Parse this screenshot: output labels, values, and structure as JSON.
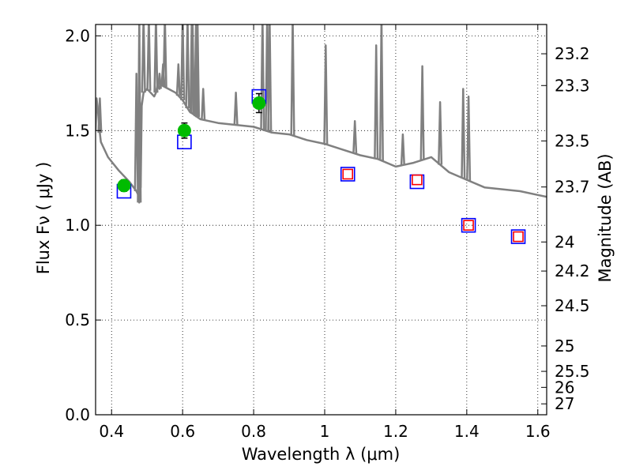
{
  "chart_data": {
    "type": "scatter",
    "xlabel": "Wavelength  λ (μm)",
    "ylabel": "Flux  Fν  ( μJy )",
    "y2label": "Magnitude (AB)",
    "xlim": [
      0.355,
      1.625
    ],
    "ylim": [
      0.0,
      2.06
    ],
    "grid": true,
    "x_ticks": [
      {
        "value": 0.4,
        "label": "0.4"
      },
      {
        "value": 0.6,
        "label": "0.6"
      },
      {
        "value": 0.8,
        "label": "0.8"
      },
      {
        "value": 1.0,
        "label": "1"
      },
      {
        "value": 1.2,
        "label": "1.2"
      },
      {
        "value": 1.4,
        "label": "1.4"
      },
      {
        "value": 1.6,
        "label": "1.6"
      }
    ],
    "y_ticks": [
      {
        "value": 0.0,
        "label": "0.0"
      },
      {
        "value": 0.5,
        "label": "0.5"
      },
      {
        "value": 1.0,
        "label": "1.0"
      },
      {
        "value": 1.5,
        "label": "1.5"
      },
      {
        "value": 2.0,
        "label": "2.0"
      }
    ],
    "magnitude_ticks": [
      "23.2",
      "23.3",
      "23.5",
      "23.7",
      "24",
      "24.2",
      "24.5",
      "25",
      "25.5",
      "26",
      "27"
    ],
    "series": [
      {
        "kind": "line",
        "color": "#808080",
        "x": [
          0.355,
          0.358,
          0.362,
          0.365,
          0.37,
          0.39,
          0.42,
          0.45,
          0.47,
          0.475,
          0.478,
          0.48,
          0.482,
          0.485,
          0.49,
          0.5,
          0.51,
          0.52,
          0.525,
          0.53,
          0.535,
          0.54,
          0.55,
          0.56,
          0.58,
          0.6,
          0.62,
          0.65,
          0.7,
          0.75,
          0.8,
          0.85,
          0.9,
          0.95,
          1.0,
          1.05,
          1.1,
          1.15,
          1.2,
          1.25,
          1.3,
          1.35,
          1.4,
          1.45,
          1.5,
          1.55,
          1.6,
          1.625
        ],
        "y": [
          1.5,
          1.67,
          1.6,
          1.52,
          1.44,
          1.36,
          1.29,
          1.23,
          1.18,
          1.16,
          1.12,
          1.65,
          1.2,
          1.63,
          1.7,
          1.72,
          1.7,
          1.68,
          1.7,
          1.75,
          1.72,
          1.74,
          1.73,
          1.72,
          1.7,
          1.66,
          1.6,
          1.56,
          1.54,
          1.53,
          1.52,
          1.49,
          1.48,
          1.45,
          1.43,
          1.4,
          1.37,
          1.35,
          1.31,
          1.33,
          1.36,
          1.28,
          1.24,
          1.2,
          1.19,
          1.18,
          1.16,
          1.15
        ]
      },
      {
        "kind": "spikes",
        "color": "#808080",
        "x": [
          0.367,
          0.47,
          0.478,
          0.49,
          0.505,
          0.525,
          0.535,
          0.545,
          0.55,
          0.588,
          0.6,
          0.614,
          0.626,
          0.628,
          0.638,
          0.642,
          0.658,
          0.75,
          0.825,
          0.838,
          0.845,
          0.91,
          1.003,
          1.085,
          1.145,
          1.16,
          1.22,
          1.275,
          1.325,
          1.39,
          1.405
        ],
        "y": [
          1.67,
          1.8,
          2.1,
          2.1,
          2.1,
          2.1,
          1.8,
          1.85,
          2.1,
          1.85,
          2.1,
          2.1,
          2.1,
          2.1,
          2.1,
          2.1,
          1.72,
          1.7,
          2.1,
          2.1,
          2.1,
          2.1,
          1.95,
          1.55,
          1.95,
          2.1,
          1.48,
          1.84,
          1.65,
          1.72,
          1.68
        ]
      },
      {
        "kind": "points",
        "marker": "square",
        "color": "#0000ff",
        "x": [
          0.435,
          0.605,
          0.815,
          1.065,
          1.26,
          1.405,
          1.545
        ],
        "y": [
          1.18,
          1.44,
          1.68,
          1.27,
          1.23,
          1.0,
          0.94
        ]
      },
      {
        "kind": "points",
        "marker": "square",
        "color": "#ff0000",
        "x": [
          1.065,
          1.26,
          1.405,
          1.545
        ],
        "y": [
          1.27,
          1.24,
          1.0,
          0.94
        ]
      },
      {
        "kind": "points",
        "marker": "circle",
        "color": "#00bb00",
        "x": [
          0.435,
          0.605,
          0.815
        ],
        "y": [
          1.21,
          1.5,
          1.645
        ],
        "yerr": [
          0.03,
          0.04,
          0.05
        ]
      }
    ]
  }
}
